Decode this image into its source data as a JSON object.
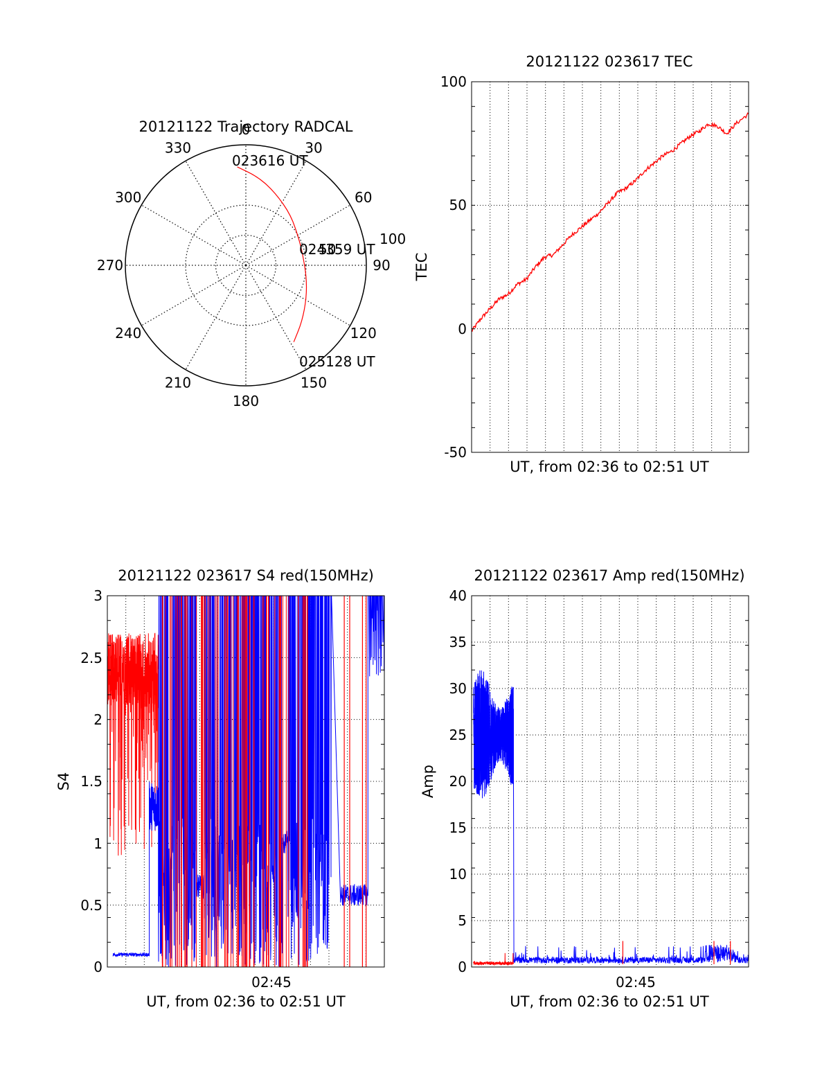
{
  "colors": {
    "red": "#ff0000",
    "blue": "#0000ff",
    "axis": "#000000",
    "grid": "#000000"
  },
  "chart_data": [
    {
      "id": "trajectory",
      "type": "polar",
      "title": "20121122 Trajectory RADCAL",
      "angle_ticks": [
        0,
        30,
        60,
        90,
        120,
        150,
        180,
        210,
        240,
        270,
        300,
        330
      ],
      "radius_tick_labels": [
        "50",
        "100"
      ],
      "rlim": [
        0,
        100
      ],
      "grid": true,
      "series": [
        {
          "color": "red",
          "points": [
            {
              "az": 355,
              "r": 82
            },
            {
              "az": 8,
              "r": 74
            },
            {
              "az": 22,
              "r": 65
            },
            {
              "az": 42,
              "r": 56
            },
            {
              "az": 65,
              "r": 49
            },
            {
              "az": 80,
              "r": 48
            },
            {
              "az": 100,
              "r": 51
            },
            {
              "az": 118,
              "r": 57
            },
            {
              "az": 135,
              "r": 66
            },
            {
              "az": 148,
              "r": 75
            }
          ]
        }
      ],
      "annotations": [
        "023616 UT",
        "024359 UT",
        "025128 UT"
      ]
    },
    {
      "id": "tec",
      "type": "line",
      "title": "20121122 023617 TEC",
      "xlabel": "UT, from 02:36 to 02:51 UT",
      "ylabel": "TEC",
      "ylim": [
        -50,
        100
      ],
      "yticks": [
        "-50",
        "0",
        "50",
        "100"
      ],
      "xlim": [
        0,
        15.2
      ],
      "grid": true,
      "series": [
        {
          "color": "red",
          "x": [
            0,
            0.5,
            1,
            1.5,
            2,
            2.5,
            3,
            3.5,
            4,
            4.5,
            5,
            5.5,
            6,
            6.5,
            7,
            7.5,
            8,
            8.5,
            9,
            9.5,
            10,
            10.5,
            11,
            11.5,
            12,
            12.5,
            13,
            13.5,
            14,
            14.5,
            15.2
          ],
          "y": [
            -1,
            4,
            8,
            12,
            14,
            18,
            20,
            25,
            29,
            30,
            34,
            38,
            41,
            44,
            47,
            51,
            55,
            57,
            60,
            64,
            67,
            70,
            72,
            75,
            78,
            80,
            83,
            82,
            79,
            83,
            87
          ]
        }
      ]
    },
    {
      "id": "s4",
      "type": "line",
      "title": "20121122 023617 S4 red(150MHz)",
      "xlabel": "UT, from 02:36 to 02:51 UT",
      "ylabel": "S4",
      "ylim": [
        0,
        3
      ],
      "yticks": [
        "0",
        "0.5",
        "1",
        "1.5",
        "2",
        "2.5",
        "3"
      ],
      "xlim": [
        0,
        15.2
      ],
      "xtick_label": "02:45",
      "xtick_value": 9,
      "grid": true,
      "series": [
        {
          "color": "red",
          "description": "high, noisy S4 values clipped near top with spikes to 0"
        },
        {
          "color": "blue",
          "description": "low ~0.1 until ~2.3 min, ~1.4 burst, dense spikes, ~0.6 plateau near 12.8-14.3 min"
        }
      ]
    },
    {
      "id": "amp",
      "type": "line",
      "title": "20121122 023617 Amp red(150MHz)",
      "xlabel": "UT, from 02:36 to 02:51 UT",
      "ylabel": "Amp",
      "ylim": [
        0,
        40
      ],
      "yticks": [
        "0",
        "5",
        "10",
        "15",
        "20",
        "25",
        "30",
        "35",
        "40"
      ],
      "xlim": [
        0,
        15.2
      ],
      "xtick_label": "02:45",
      "xtick_value": 9,
      "grid": true,
      "series": [
        {
          "color": "blue",
          "description": "about 25 ± 6 from 0 to 2.3 min, then drops to ~0.5 with small bumps up to ~2.5"
        },
        {
          "color": "red",
          "description": "near 0.4 baseline from 0 to 2.3 min"
        }
      ]
    }
  ]
}
